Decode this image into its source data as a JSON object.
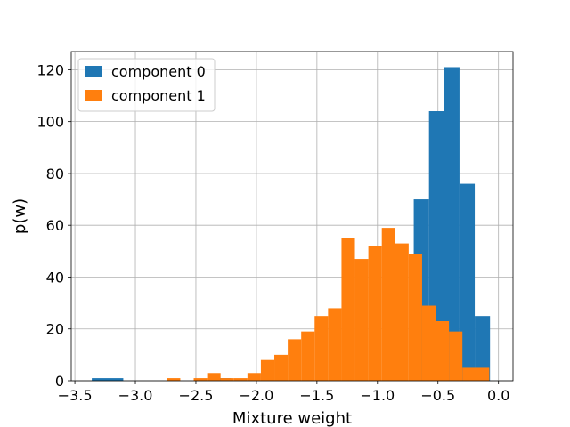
{
  "chart_data": {
    "type": "bar",
    "subtype": "histogram",
    "xlabel": "Mixture weight",
    "ylabel": "p(w)",
    "xlim": [
      -3.53,
      0.12
    ],
    "ylim": [
      0,
      127
    ],
    "xticks": [
      -3.5,
      -3.0,
      -2.5,
      -2.0,
      -1.5,
      -1.0,
      -0.5,
      0.0
    ],
    "xtick_labels": [
      "−3.5",
      "−3.0",
      "−2.5",
      "−2.0",
      "−1.5",
      "−1.0",
      "−0.5",
      "0.0"
    ],
    "yticks": [
      0,
      20,
      40,
      60,
      80,
      100,
      120
    ],
    "ytick_labels": [
      "0",
      "20",
      "40",
      "60",
      "80",
      "100",
      "120"
    ],
    "grid": true,
    "legend_position": "upper-left",
    "series": [
      {
        "name": "component 0",
        "color": "#1f77b4",
        "bins": [
          {
            "x0": -3.36,
            "x1": -3.1,
            "count": 1
          },
          {
            "x0": -2.34,
            "x1": -2.21,
            "count": 1
          },
          {
            "x0": -0.7,
            "x1": -0.574,
            "count": 70
          },
          {
            "x0": -0.574,
            "x1": -0.448,
            "count": 104
          },
          {
            "x0": -0.448,
            "x1": -0.322,
            "count": 121
          },
          {
            "x0": -0.322,
            "x1": -0.196,
            "count": 76
          },
          {
            "x0": -0.196,
            "x1": -0.07,
            "count": 25
          }
        ]
      },
      {
        "name": "component 1",
        "color": "#ff7f0e",
        "counts": [
          1,
          0,
          1,
          3,
          1,
          1,
          3,
          8,
          10,
          16,
          19,
          25,
          28,
          55,
          47,
          52,
          59,
          53,
          49,
          29,
          23,
          19,
          5,
          5
        ],
        "bin_start": -2.74,
        "bin_width": 0.111
      }
    ]
  }
}
